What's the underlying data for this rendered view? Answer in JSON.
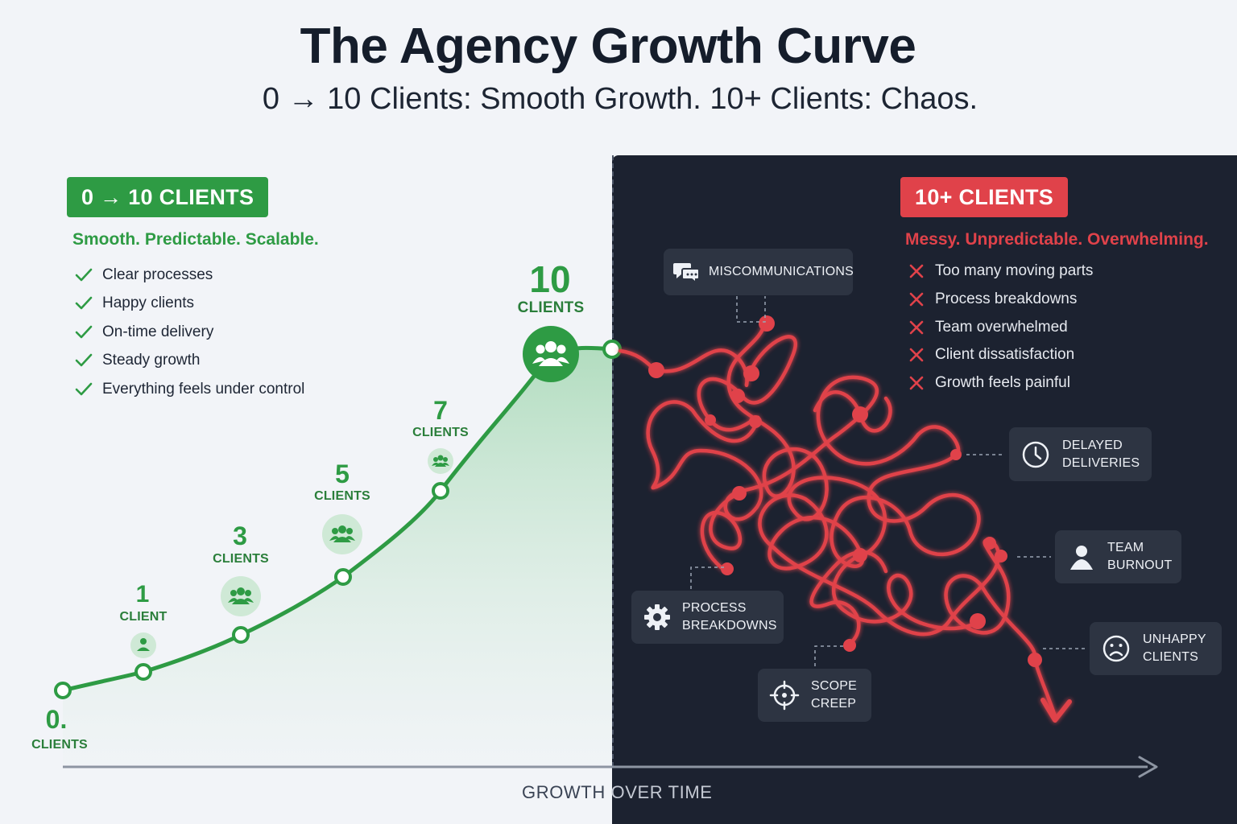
{
  "title": "The Agency Growth Curve",
  "subtitle": "0 → 10 Clients: Smooth Growth. 10+ Clients: Chaos.",
  "left": {
    "badge": "0 → 10 CLIENTS",
    "tagline": "Smooth. Predictable. Scalable.",
    "items": [
      "Clear processes",
      "Happy clients",
      "On-time delivery",
      "Steady growth",
      "Everything feels under control"
    ],
    "color": "#2e9b44"
  },
  "right": {
    "badge": "10+ CLIENTS",
    "tagline": "Messy. Unpredictable. Overwhelming.",
    "items": [
      "Too many moving parts",
      "Process breakdowns",
      "Team overwhelmed",
      "Client dissatisfaction",
      "Growth feels painful"
    ],
    "color": "#e0424a",
    "panel_color": "#1c2230"
  },
  "milestones": [
    {
      "number": "0.",
      "label": "CLIENTS",
      "icon": "none"
    },
    {
      "number": "1",
      "label": "CLIENT",
      "icon": "person-icon"
    },
    {
      "number": "3",
      "label": "CLIENTS",
      "icon": "group-icon"
    },
    {
      "number": "5",
      "label": "CLIENTS",
      "icon": "group-icon"
    },
    {
      "number": "7",
      "label": "CLIENTS",
      "icon": "group-icon"
    },
    {
      "number": "10",
      "label": "CLIENTS",
      "icon": "group-icon"
    }
  ],
  "chaos_labels": {
    "miscommunications": "MISCOMMUNICATIONS",
    "delayed": [
      "DELAYED",
      "DELIVERIES"
    ],
    "burnout": [
      "TEAM",
      "BURNOUT"
    ],
    "process": [
      "PROCESS",
      "BREAKDOWNS"
    ],
    "scope": [
      "SCOPE",
      "CREEP"
    ],
    "unhappy": [
      "UNHAPPY",
      "CLIENTS"
    ]
  },
  "axis": {
    "label_part1": "GROWTH ",
    "label_part2": "OVER TIME"
  }
}
